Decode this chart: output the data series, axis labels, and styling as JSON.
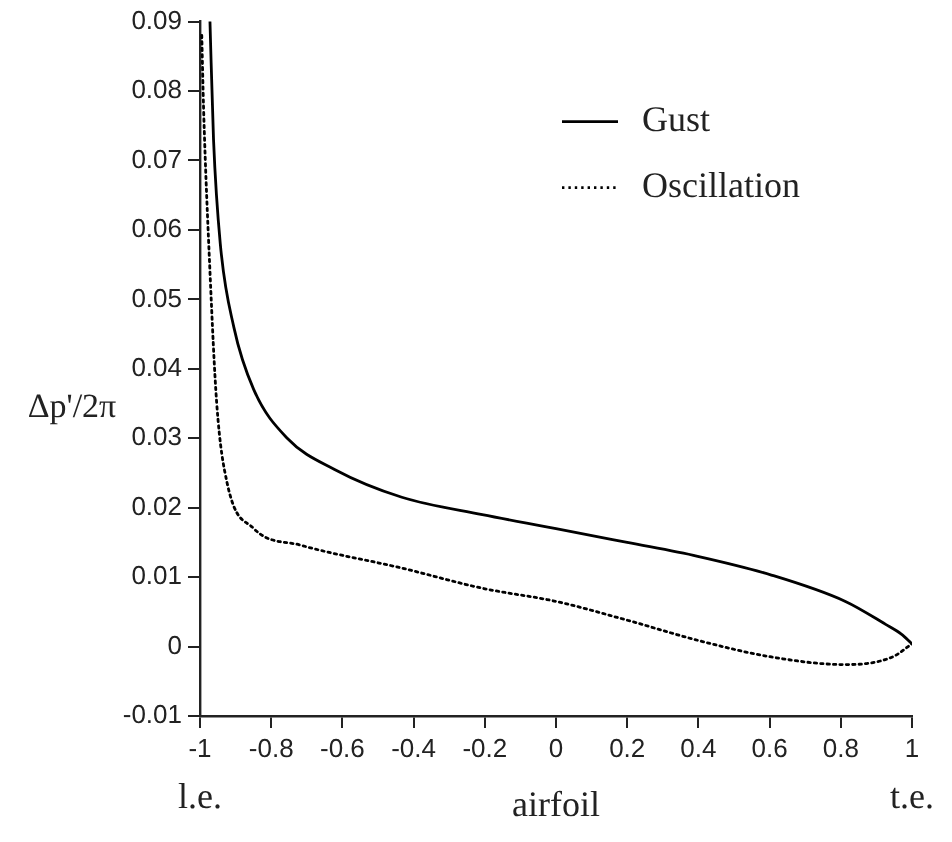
{
  "chart_data": {
    "type": "line",
    "xlabel": "airfoil",
    "ylabel": "Δp'/2π",
    "xlim": [
      -1,
      1
    ],
    "xticks": [
      -1,
      -0.8,
      -0.6,
      -0.4,
      -0.2,
      0,
      0.2,
      0.4,
      0.6,
      0.8,
      1
    ],
    "ylim": [
      -0.01,
      0.09
    ],
    "yticks": [
      -0.01,
      0,
      0.01,
      0.02,
      0.03,
      0.04,
      0.05,
      0.06,
      0.07,
      0.08,
      0.09
    ],
    "grid": false,
    "legend": "top right",
    "marker": "none",
    "annotations": [
      "l.e.",
      "t.e."
    ],
    "series": [
      {
        "name": "Gust",
        "color": "#000000",
        "line_style": "solid",
        "x": [
          -0.972,
          -0.962,
          -0.943,
          -0.905,
          -0.849,
          -0.755,
          -0.622,
          -0.433,
          -0.207,
          0,
          0.2,
          0.398,
          0.605,
          0.813,
          0.926,
          0.97,
          1
        ],
        "values": [
          0.09,
          0.073,
          0.058,
          0.046,
          0.037,
          0.03,
          0.0255,
          0.0215,
          0.019,
          0.017,
          0.015,
          0.013,
          0.0103,
          0.0065,
          0.0032,
          0.0018,
          0.0004
        ]
      },
      {
        "name": "Oscillation",
        "color": "#000000",
        "line_style": "dotted",
        "x": [
          -0.995,
          -0.99,
          -0.972,
          -0.953,
          -0.924,
          -0.849,
          -0.717,
          -0.433,
          -0.207,
          0,
          0.2,
          0.398,
          0.605,
          0.813,
          0.945,
          1
        ],
        "values": [
          0.088,
          0.0776,
          0.054,
          0.035,
          0.0236,
          0.017,
          0.0146,
          0.0113,
          0.0084,
          0.0065,
          0.0038,
          0.0009,
          -0.0015,
          -0.0026,
          -0.0015,
          0.0004
        ]
      }
    ]
  }
}
